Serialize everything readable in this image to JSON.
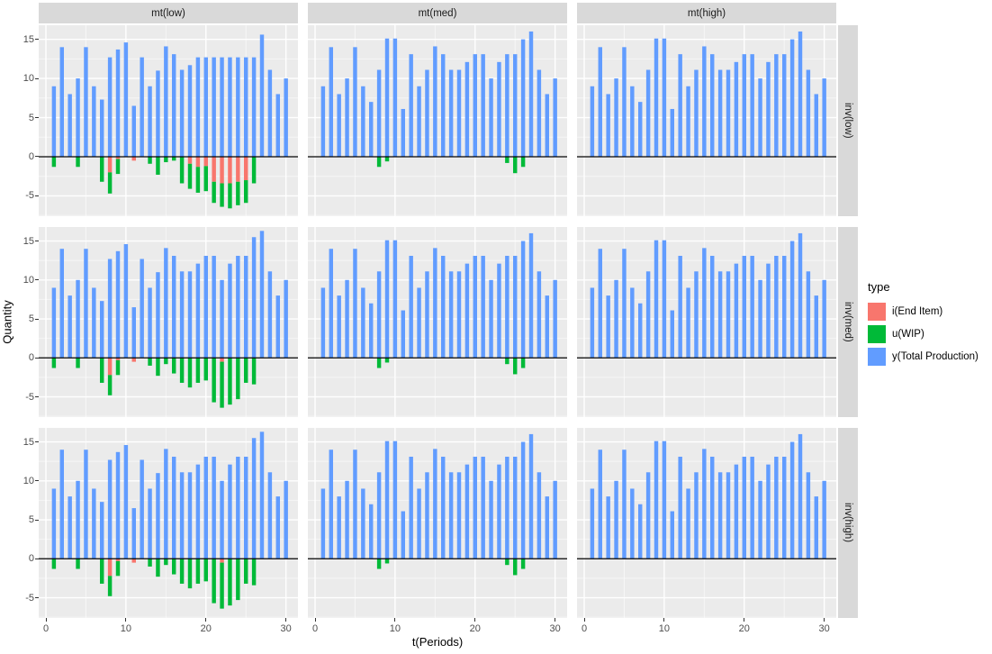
{
  "figure": {
    "panel_bg": "#EBEBEB",
    "strip_bg": "#D9D9D9",
    "grid_major": "#FFFFFF",
    "grid_minor": "#F5F5F5",
    "zero_line_color": "#000000"
  },
  "axes": {
    "y_title": "Quantity",
    "x_title": "t(Periods)",
    "y_ticks": [
      15,
      10,
      5,
      0,
      -5
    ],
    "x_ticks": [
      0,
      10,
      20,
      30
    ]
  },
  "facets": {
    "cols": [
      "mt(low)",
      "mt(med)",
      "mt(high)"
    ],
    "rows": [
      "inv(low)",
      "inv(med)",
      "inv(high)"
    ]
  },
  "legend": {
    "title": "type",
    "entries": [
      {
        "label": "i(End Item)",
        "color": "#F8766D"
      },
      {
        "label": "u(WIP)",
        "color": "#00BA38"
      },
      {
        "label": "y(Total Production)",
        "color": "#619CFF"
      }
    ]
  },
  "chart_data": {
    "type": "bar",
    "stacked": true,
    "title": "",
    "xlabel": "t(Periods)",
    "ylabel": "Quantity",
    "xlim": [
      -0.9,
      31.5
    ],
    "ylim": [
      -7.6,
      16.8
    ],
    "grid": true,
    "legend_position": "right",
    "x": [
      1,
      2,
      3,
      4,
      5,
      6,
      7,
      8,
      9,
      10,
      11,
      12,
      13,
      14,
      15,
      16,
      17,
      18,
      19,
      20,
      21,
      22,
      23,
      24,
      25,
      26,
      27,
      28,
      29,
      30
    ],
    "series_meaning": {
      "y": "y(Total Production)",
      "i": "i(End Item)",
      "u": "u(WIP)"
    },
    "datasets": {
      "mtlow_invlow": {
        "y": [
          9,
          14,
          8,
          10,
          14,
          9,
          7.3,
          12.7,
          13.7,
          14.6,
          6.5,
          12.7,
          9,
          11,
          14.1,
          13.1,
          11.1,
          11.7,
          12.7,
          12.7,
          12.7,
          12.7,
          12.7,
          12.7,
          12.7,
          12.7,
          15.6,
          11.1,
          8,
          10
        ],
        "i": [
          0,
          0,
          0,
          0,
          0,
          0,
          0,
          -2,
          -0.3,
          0,
          -0.5,
          0,
          0,
          0,
          0,
          0,
          0,
          -0.9,
          -1.3,
          -1.2,
          -3.2,
          -3.4,
          -3.4,
          -3.2,
          -3,
          0,
          0,
          0,
          0,
          0
        ],
        "u": [
          -1.3,
          0,
          0,
          -1.3,
          0,
          0,
          -3.2,
          -2.7,
          -1.9,
          0,
          0,
          0,
          -0.9,
          -2.3,
          -0.7,
          -0.5,
          -3.4,
          -3.2,
          -3.3,
          -3.2,
          -2.7,
          -3,
          -3.2,
          -3,
          -2.9,
          -3.4,
          0,
          0,
          0,
          0
        ]
      },
      "mtlow_invmedhigh": {
        "y": [
          9,
          14,
          8,
          10,
          14,
          9,
          7.3,
          12.7,
          13.7,
          14.6,
          6.5,
          12.7,
          9,
          11,
          14.1,
          13.1,
          11.1,
          11.1,
          12.1,
          13.1,
          13.1,
          10,
          12.1,
          13.1,
          13.1,
          15.5,
          16.3,
          11.1,
          8,
          10
        ],
        "i": [
          0,
          0,
          0,
          0,
          0,
          0,
          0,
          -2.2,
          -0.3,
          0,
          -0.5,
          0,
          0,
          0,
          0,
          0,
          0,
          0,
          0,
          0,
          0,
          -0.5,
          0,
          0,
          0,
          0,
          0,
          0,
          0,
          0
        ],
        "u": [
          -1.3,
          0,
          0,
          -1.3,
          0,
          0,
          -3.2,
          -2.6,
          -1.9,
          0,
          0,
          0,
          -1,
          -2.3,
          -0.8,
          -2,
          -3.2,
          -3.8,
          -3.2,
          -2.9,
          -5.7,
          -5.9,
          -6,
          -5.3,
          -3.2,
          -3.4,
          0,
          0,
          0,
          0
        ]
      },
      "mtmed": {
        "y": [
          9,
          14,
          8,
          10,
          14,
          9,
          7,
          11.1,
          15.1,
          15.1,
          6.1,
          13.1,
          9,
          11.1,
          14.1,
          13.1,
          11.1,
          11.1,
          12.1,
          13.1,
          13.1,
          10,
          12.1,
          13.1,
          13.1,
          15,
          16,
          11.1,
          8,
          10
        ],
        "i": [
          0,
          0,
          0,
          0,
          0,
          0,
          0,
          0,
          0,
          0,
          0,
          0,
          0,
          0,
          0,
          0,
          0,
          0,
          0,
          0,
          0,
          0,
          0,
          0,
          0,
          0,
          0,
          0,
          0,
          0
        ],
        "u": [
          0,
          0,
          0,
          0,
          0,
          0,
          0,
          -1.3,
          -0.6,
          0,
          0,
          0,
          0,
          0,
          0,
          0,
          0,
          0,
          0,
          0,
          0,
          0,
          0,
          -0.8,
          -2.1,
          -1.3,
          0,
          0,
          0,
          0
        ]
      },
      "mthigh": {
        "y": [
          9,
          14,
          8,
          10,
          14,
          9,
          7,
          11.1,
          15.1,
          15.1,
          6.1,
          13.1,
          9,
          11.1,
          14.1,
          13.1,
          11.1,
          11.1,
          12.1,
          13.1,
          13.1,
          10,
          12.1,
          13.1,
          13.1,
          15,
          16,
          11.1,
          8,
          10
        ],
        "i": [
          0,
          0,
          0,
          0,
          0,
          0,
          0,
          0,
          0,
          0,
          0,
          0,
          0,
          0,
          0,
          0,
          0,
          0,
          0,
          0,
          0,
          0,
          0,
          0,
          0,
          0,
          0,
          0,
          0,
          0
        ],
        "u": [
          0,
          0,
          0,
          0,
          0,
          0,
          0,
          0,
          0,
          0,
          0,
          0,
          0,
          0,
          0,
          0,
          0,
          0,
          0,
          0,
          0,
          0,
          0,
          0,
          0,
          0,
          0,
          0,
          0,
          0
        ]
      }
    },
    "facet_grid": [
      [
        "mtlow_invlow",
        "mtmed",
        "mthigh"
      ],
      [
        "mtlow_invmedhigh",
        "mtmed",
        "mthigh"
      ],
      [
        "mtlow_invmedhigh",
        "mtmed",
        "mthigh"
      ]
    ],
    "y_major_gridlines": [
      -5,
      0,
      5,
      10,
      15
    ],
    "y_minor_gridlines": [
      -7.5,
      -2.5,
      2.5,
      7.5,
      12.5
    ],
    "x_major_gridlines": [
      0,
      10,
      20,
      30
    ],
    "x_minor_gridlines": [
      5,
      15,
      25
    ]
  }
}
